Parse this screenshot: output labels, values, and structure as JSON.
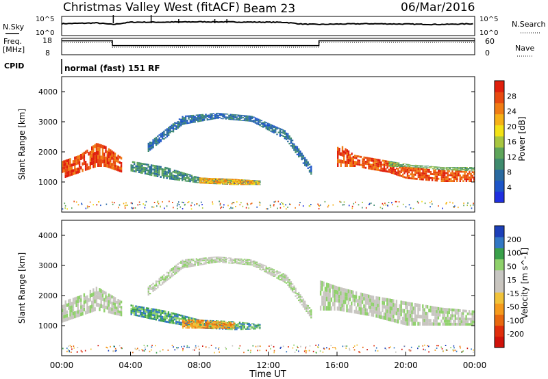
{
  "header": {
    "site": "Christmas Valley West (fitACF)",
    "beam": "Beam 23",
    "date": "06/Mar/2016"
  },
  "strip_labels": {
    "nsky": "N.Sky",
    "nsearch": "N.Search",
    "freq": "Freq.",
    "freq_unit": "[MHz]",
    "nave": "Nave",
    "cpid": "CPID",
    "cpid_value": "normal (fast) 151 RF"
  },
  "strip_ticks": {
    "noise_top": "10^5",
    "noise_bottom": "10^0",
    "freq_top": "18",
    "freq_bottom": "8",
    "nave_top": "60",
    "nave_bottom": "0"
  },
  "colors": {
    "power_scale": [
      "#1f2fe0",
      "#1d55c8",
      "#2a6aa0",
      "#3f8b6e",
      "#5ea55a",
      "#a8c640",
      "#f3e216",
      "#f6b117",
      "#f07c14",
      "#e84a10",
      "#e01f0c"
    ],
    "velocity_scale": [
      "#1c3fb8",
      "#3277c4",
      "#3aa04a",
      "#8fd16b",
      "#c7c6c2",
      "#c9c5bf",
      "#f0c23a",
      "#f59a1c",
      "#e8680f",
      "#e02e0c",
      "#d0120a"
    ]
  },
  "chart_data": [
    {
      "panel": "noise",
      "type": "line",
      "x_range": [
        0,
        24
      ],
      "y_labels": [
        "10^0",
        "10^5"
      ],
      "series": [
        {
          "name": "N.Sky",
          "x": [
            0,
            1,
            2,
            3,
            4,
            6,
            8,
            10,
            12,
            13,
            14,
            15,
            16,
            18,
            20,
            22,
            24
          ],
          "values": [
            0.62,
            0.64,
            0.66,
            0.58,
            0.7,
            0.7,
            0.72,
            0.71,
            0.7,
            0.69,
            0.6,
            0.58,
            0.6,
            0.62,
            0.6,
            0.58,
            0.62
          ]
        }
      ]
    },
    {
      "panel": "frequency",
      "type": "line",
      "x_range": [
        0,
        24
      ],
      "ylim": [
        8,
        18
      ],
      "series": [
        {
          "name": "Freq.",
          "x": [
            0,
            2.95,
            2.95,
            14.95,
            14.95,
            24
          ],
          "values": [
            16.5,
            16.5,
            13.6,
            13.6,
            16.5,
            16.5
          ]
        }
      ]
    },
    {
      "panel": "power",
      "type": "heatmap",
      "title": "Power [dB]",
      "ylabel": "Slant Range [km]",
      "ylim": [
        0,
        4500
      ],
      "x_range": [
        0,
        24
      ],
      "colorbar_ticks": [
        "4",
        "8",
        "12",
        "16",
        "20",
        "24",
        "28"
      ],
      "y_ticks": [
        "1000",
        "2000",
        "3000",
        "4000"
      ],
      "bands": [
        {
          "x": [
            0,
            1,
            2,
            2.5,
            3.5
          ],
          "lo": [
            1100,
            1300,
            1500,
            1500,
            1300
          ],
          "hi": [
            1700,
            1900,
            2300,
            2200,
            1800
          ],
          "level": 9
        },
        {
          "x": [
            4,
            6,
            8,
            10,
            11.5
          ],
          "lo": [
            1350,
            1100,
            950,
            900,
            900
          ],
          "hi": [
            1700,
            1500,
            1150,
            1100,
            1050
          ],
          "level": 3
        },
        {
          "x": [
            8,
            10,
            11.5
          ],
          "lo": [
            950,
            900,
            900
          ],
          "hi": [
            1150,
            1100,
            1050
          ],
          "level": 7
        },
        {
          "x": [
            16,
            17,
            18,
            19,
            20,
            22,
            24
          ],
          "lo": [
            1500,
            1500,
            1400,
            1300,
            1100,
            1000,
            1000
          ],
          "hi": [
            2300,
            1900,
            1800,
            1700,
            1500,
            1400,
            1350
          ],
          "level": 9
        },
        {
          "x": [
            19,
            20,
            22,
            24
          ],
          "lo": [
            1500,
            1500,
            1400,
            1350
          ],
          "hi": [
            1700,
            1600,
            1500,
            1500
          ],
          "level": 4
        },
        {
          "x": [
            5,
            7,
            9,
            11,
            13,
            14.5
          ],
          "lo": [
            2000,
            2900,
            3100,
            3000,
            2400,
            1200
          ],
          "hi": [
            2300,
            3200,
            3300,
            3200,
            2700,
            1500
          ],
          "level": 2
        }
      ]
    },
    {
      "panel": "velocity",
      "type": "heatmap",
      "title": "Velocity [m s^-1]",
      "ylabel": "Slant Range [km]",
      "ylim": [
        0,
        4500
      ],
      "x_range": [
        0,
        24
      ],
      "colorbar_ticks": [
        "200",
        "100",
        "50",
        "15",
        "-15",
        "-50",
        "-100",
        "-200"
      ],
      "y_ticks": [
        "1000",
        "2000",
        "3000",
        "4000"
      ],
      "x_ticks": [
        "00:00",
        "04:00",
        "08:00",
        "12:00",
        "16:00",
        "20:00",
        "00:00"
      ],
      "xlabel": "Time UT",
      "bands": [
        {
          "x": [
            0,
            1,
            2,
            3.5
          ],
          "lo": [
            1100,
            1300,
            1500,
            1300
          ],
          "hi": [
            1800,
            2000,
            2300,
            1800
          ],
          "level": 4
        },
        {
          "x": [
            4,
            6,
            8,
            10,
            11.5
          ],
          "lo": [
            1350,
            1100,
            900,
            850,
            880
          ],
          "hi": [
            1700,
            1500,
            1200,
            1150,
            1050
          ],
          "level": 2
        },
        {
          "x": [
            7,
            8,
            9,
            10
          ],
          "lo": [
            900,
            900,
            900,
            880
          ],
          "hi": [
            1200,
            1200,
            1150,
            1100
          ],
          "level": 7
        },
        {
          "x": [
            15,
            16,
            18,
            20,
            22,
            24
          ],
          "lo": [
            1500,
            1500,
            1300,
            1000,
            1000,
            1000
          ],
          "hi": [
            2500,
            2300,
            2000,
            1800,
            1600,
            1500
          ],
          "level": 4
        },
        {
          "x": [
            5,
            7,
            9,
            11,
            13,
            14.5
          ],
          "lo": [
            2000,
            2900,
            3100,
            3000,
            2400,
            1200
          ],
          "hi": [
            2300,
            3200,
            3300,
            3200,
            2700,
            1500
          ],
          "level": 4
        }
      ]
    }
  ]
}
